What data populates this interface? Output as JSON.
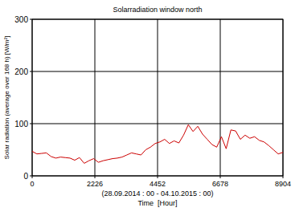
{
  "chart_data": {
    "type": "line",
    "title": "Solarradiation window north",
    "x_label": "Time  [Hour]",
    "x_sublabel": "(28.09.2014 : 00 - 04.10.2015 : 00)",
    "y_label": "Solar radiation (average over 168 h) [W/m²]",
    "x": [
      0,
      168,
      336,
      504,
      672,
      840,
      1008,
      1176,
      1344,
      1512,
      1680,
      1848,
      2016,
      2184,
      2352,
      2520,
      2688,
      2856,
      3024,
      3192,
      3360,
      3528,
      3696,
      3864,
      4032,
      4200,
      4368,
      4536,
      4704,
      4872,
      5040,
      5208,
      5376,
      5544,
      5712,
      5880,
      6048,
      6216,
      6384,
      6552,
      6720,
      6888,
      7056,
      7224,
      7392,
      7560,
      7728,
      7896,
      8064,
      8232,
      8400,
      8568,
      8736,
      8904
    ],
    "series": [
      {
        "name": "Solar radiation",
        "color": "#cc0000",
        "values": [
          47,
          42,
          43,
          44,
          37,
          34,
          36,
          35,
          34,
          30,
          35,
          24,
          29,
          33,
          26,
          29,
          31,
          33,
          34,
          36,
          40,
          44,
          42,
          40,
          50,
          55,
          62,
          65,
          70,
          62,
          67,
          63,
          78,
          98,
          85,
          95,
          80,
          70,
          60,
          55,
          75,
          52,
          88,
          86,
          70,
          78,
          72,
          75,
          68,
          65,
          58,
          50,
          42,
          45
        ]
      }
    ],
    "xlim": [
      0,
      8904
    ],
    "xticks": [
      0,
      2226,
      4452,
      6678,
      8904
    ],
    "ylim": [
      0,
      300
    ],
    "yticks": [
      0,
      100,
      200,
      300
    ],
    "grid": true
  }
}
